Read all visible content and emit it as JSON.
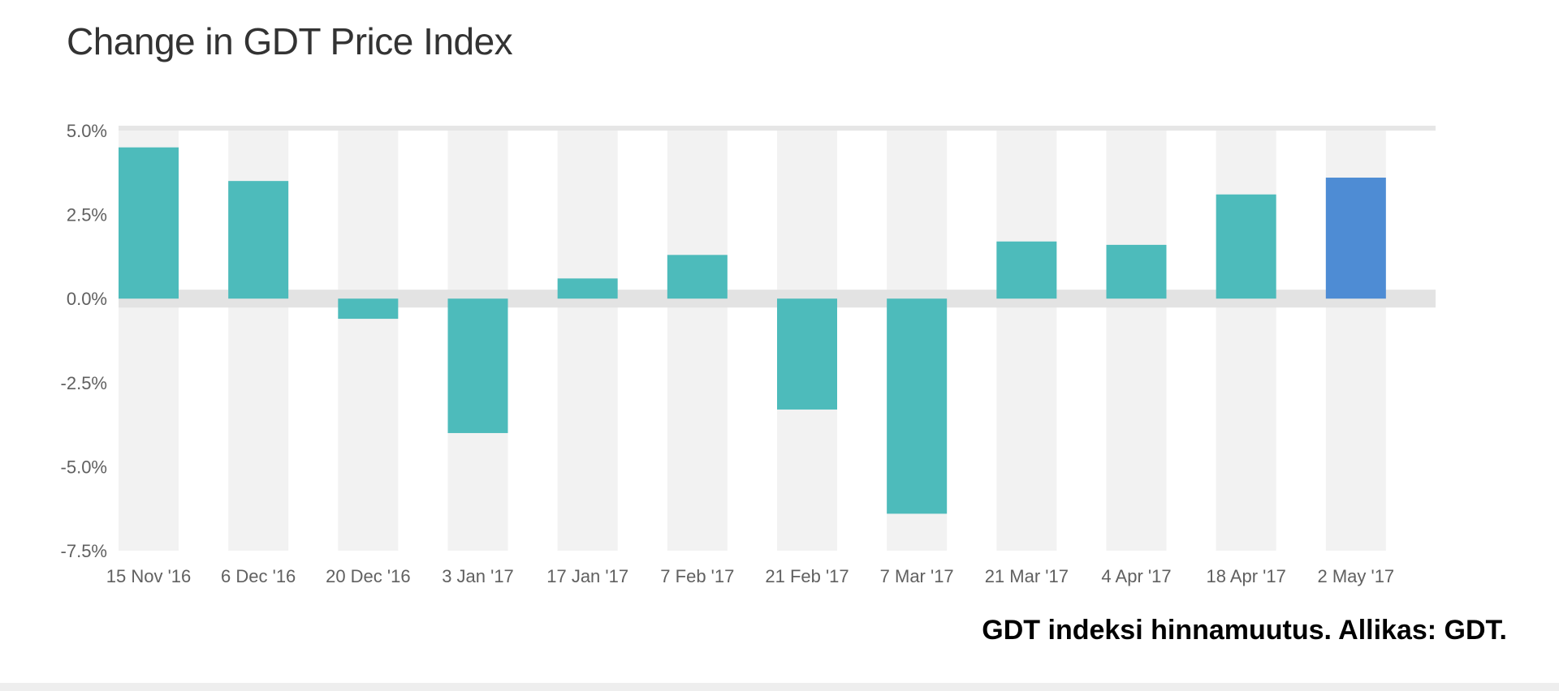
{
  "chart_data": {
    "type": "bar",
    "title": "Change in GDT Price Index",
    "xlabel": "",
    "ylabel": "",
    "categories": [
      "15 Nov '16",
      "6 Dec '16",
      "20 Dec '16",
      "3 Jan '17",
      "17 Jan '17",
      "7 Feb '17",
      "21 Feb '17",
      "7 Mar '17",
      "21 Mar '17",
      "4 Apr '17",
      "18 Apr '17",
      "2 May '17"
    ],
    "values": [
      4.5,
      3.5,
      -0.6,
      -4.0,
      0.6,
      1.3,
      -3.3,
      -6.4,
      1.7,
      1.6,
      3.1,
      3.6
    ],
    "ylim": [
      -7.5,
      5.0
    ],
    "yticks": [
      5.0,
      2.5,
      0.0,
      -2.5,
      -5.0,
      -7.5
    ],
    "ytick_labels": [
      "5.0%",
      "2.5%",
      "0.0%",
      "-2.5%",
      "-5.0%",
      "-7.5%"
    ],
    "grid": false,
    "legend": "none",
    "colors": {
      "bar": "#4dbbbb",
      "highlight_bar": "#4e8cd4",
      "band": "#f2f2f2",
      "zero_band": "#e3e3e3"
    },
    "highlight_index": 11
  },
  "caption": "GDT indeksi hinnamuutus. Allikas: GDT."
}
